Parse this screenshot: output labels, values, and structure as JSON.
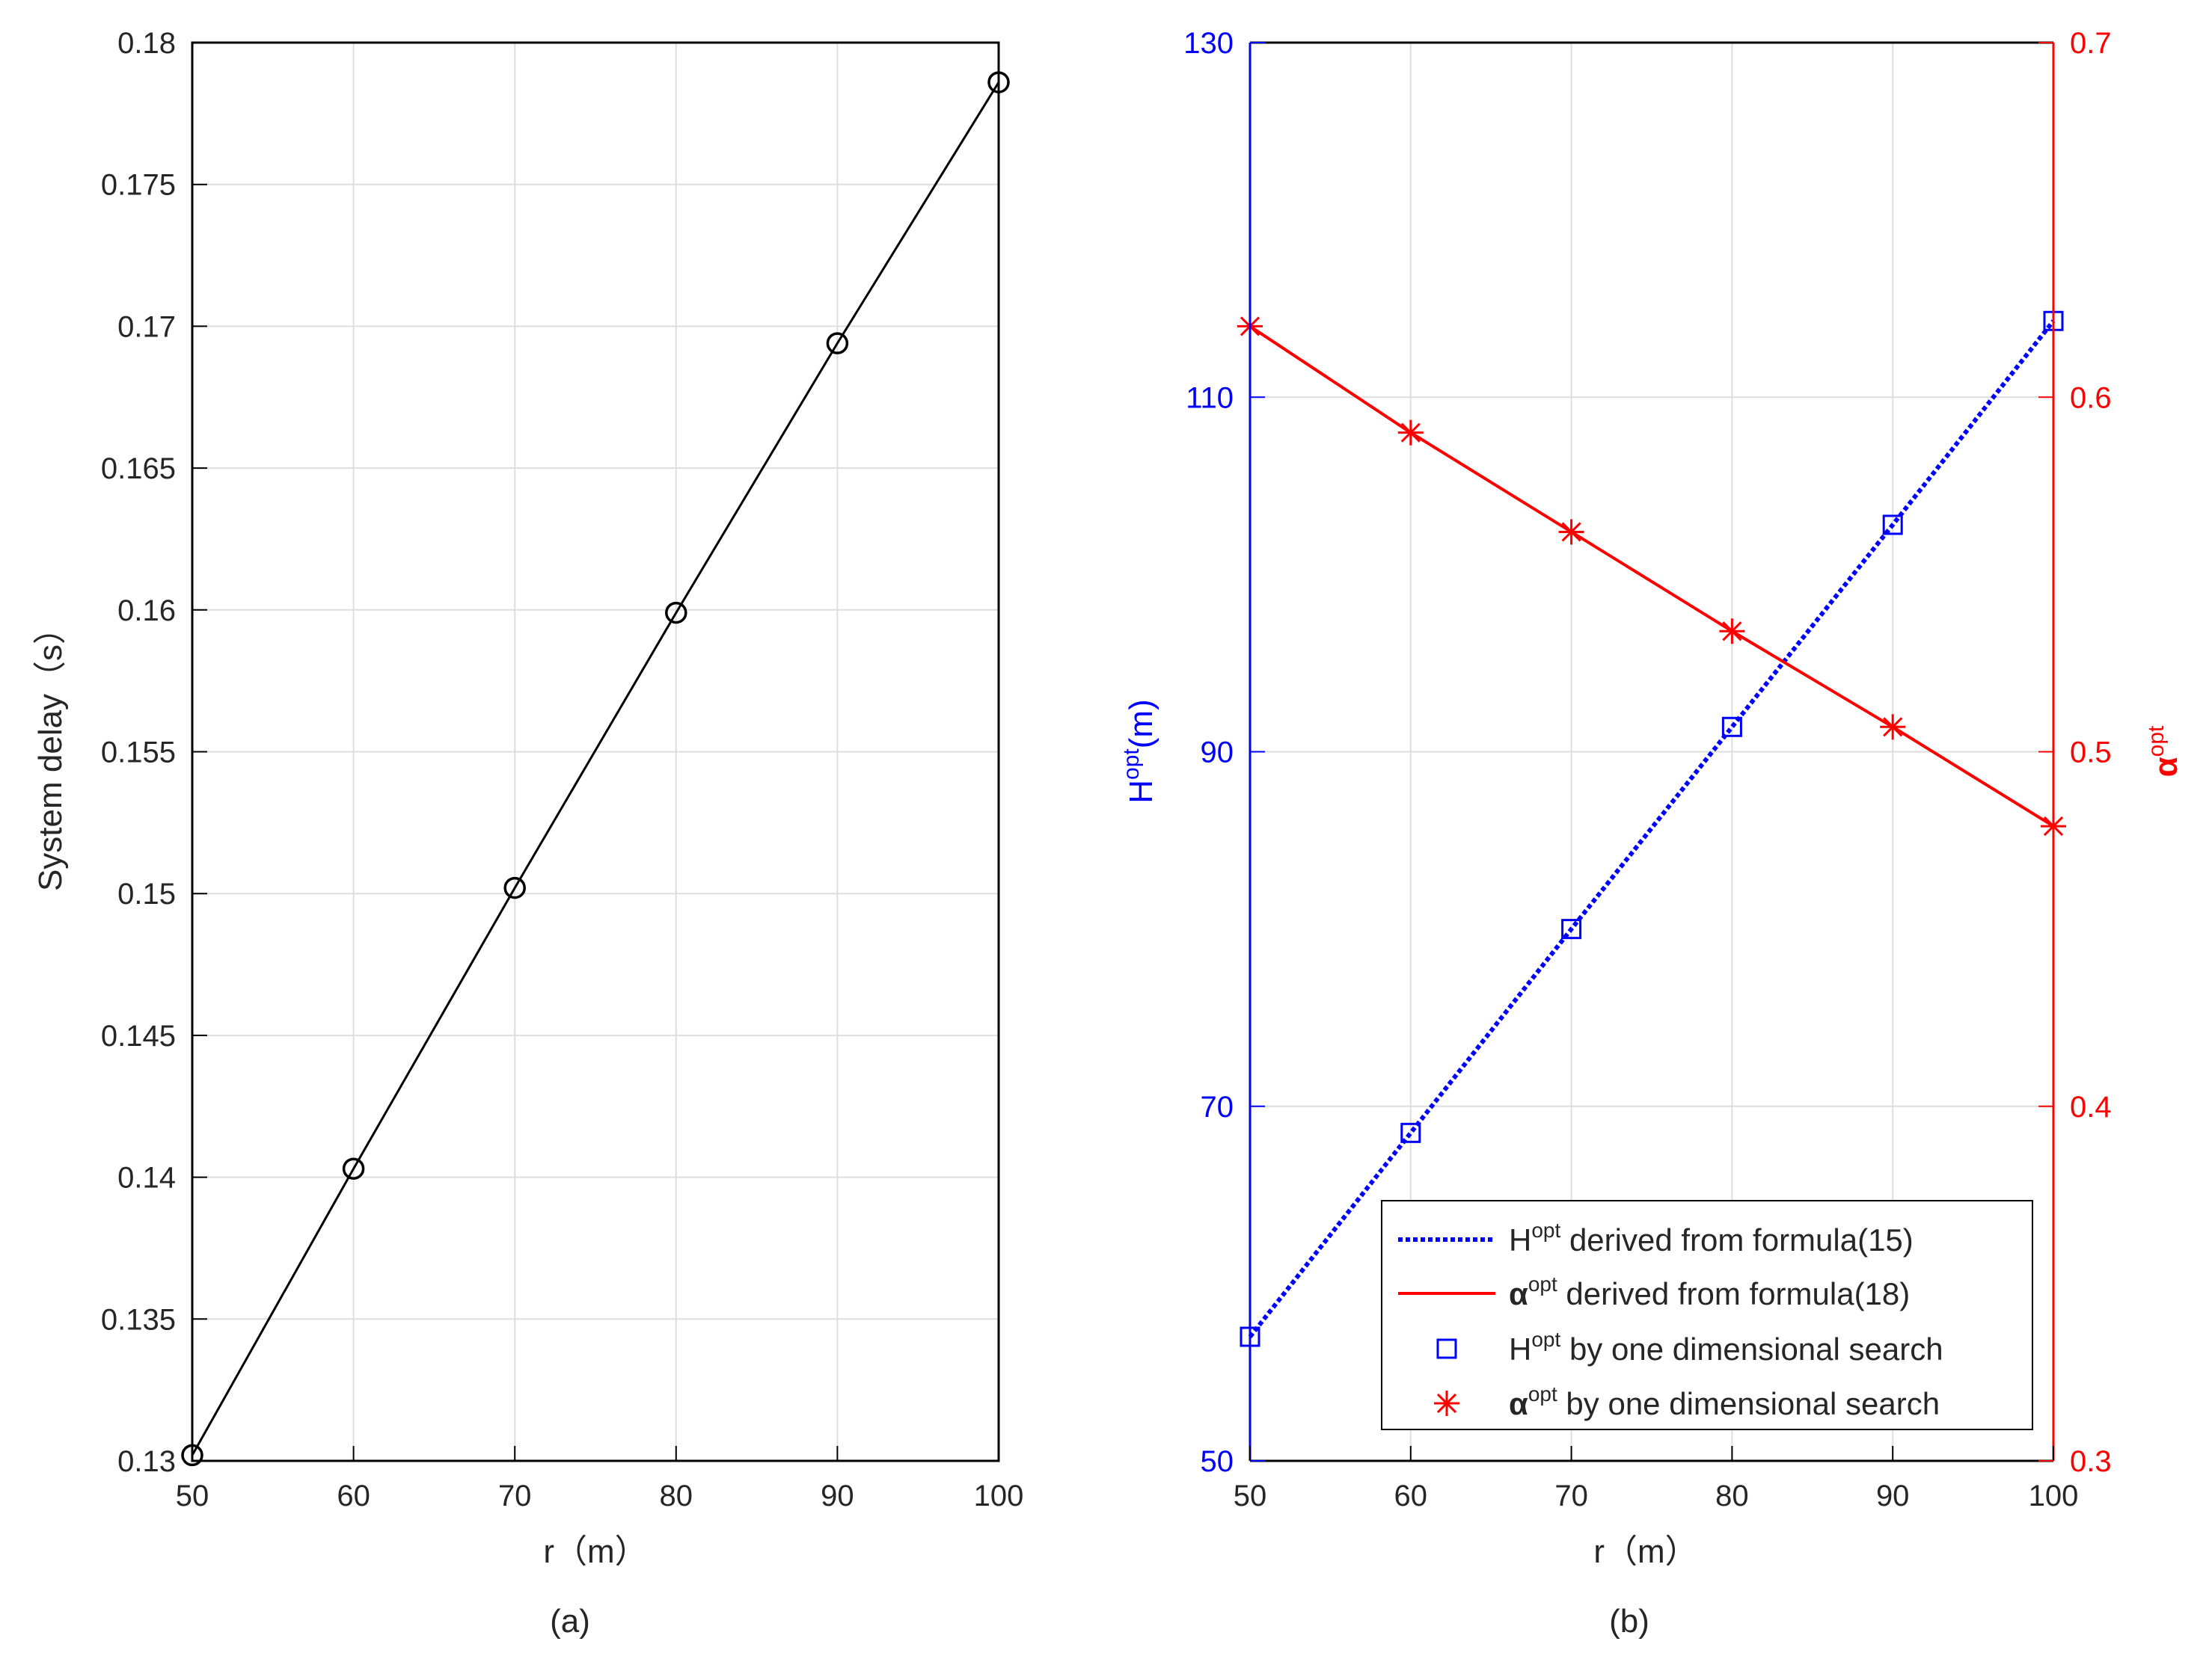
{
  "figure": {
    "background": "#ffffff"
  },
  "chart_data": [
    {
      "type": "line",
      "panel_label": "(a)",
      "xlabel": "r（m）",
      "ylabel": "System delay（s）",
      "xlim": [
        50,
        100
      ],
      "ylim": [
        0.13,
        0.18
      ],
      "xticks": [
        "50",
        "60",
        "70",
        "80",
        "90",
        "100"
      ],
      "yticks": [
        "0.13",
        "0.135",
        "0.14",
        "0.145",
        "0.15",
        "0.155",
        "0.16",
        "0.165",
        "0.17",
        "0.175",
        "0.18"
      ],
      "grid": true,
      "legend": "none",
      "series": [
        {
          "color": "#000000",
          "marker": "circle",
          "x": [
            50,
            60,
            70,
            80,
            90,
            100
          ],
          "y": [
            0.1302,
            0.1403,
            0.1502,
            0.1599,
            0.1694,
            0.1786
          ]
        }
      ]
    },
    {
      "type": "line",
      "panel_label": "(b)",
      "xlabel": "r（m）",
      "ylabel_left": {
        "base": "H",
        "sup": "opt",
        "tail": "(m)"
      },
      "ylabel_right": {
        "base": "α",
        "sup": "opt",
        "tail": ""
      },
      "xlim": [
        50,
        100
      ],
      "ylim_left": [
        50,
        130
      ],
      "ylim_right": [
        0.3,
        0.7
      ],
      "xticks": [
        "50",
        "60",
        "70",
        "80",
        "90",
        "100"
      ],
      "yticks_left": [
        "50",
        "70",
        "90",
        "110",
        "130"
      ],
      "yticks_right": [
        "0.3",
        "0.4",
        "0.5",
        "0.6",
        "0.7"
      ],
      "left_axis_color": "#0000ff",
      "right_axis_color": "#ff0000",
      "grid": true,
      "legend": "bottom-right",
      "series": [
        {
          "legend": {
            "base": "H",
            "sup": "opt",
            "tail": " derived from formula(15)"
          },
          "axis": "left",
          "style": "dotted",
          "color": "#0000ff",
          "x": [
            50,
            60,
            70,
            80,
            90,
            100
          ],
          "y": [
            57.0,
            68.5,
            80.0,
            91.4,
            102.8,
            114.3
          ]
        },
        {
          "legend": {
            "base": "α",
            "sup": "opt",
            "tail": " derived from formula(18)"
          },
          "axis": "right",
          "style": "solid",
          "color": "#ff0000",
          "x": [
            50,
            60,
            70,
            80,
            90,
            100
          ],
          "y": [
            0.62,
            0.59,
            0.562,
            0.534,
            0.507,
            0.479
          ]
        },
        {
          "legend": {
            "base": "H",
            "sup": "opt",
            "tail": " by one dimensional search"
          },
          "axis": "left",
          "style": "marker",
          "marker": "square",
          "color": "#0000ff",
          "x": [
            50,
            60,
            70,
            80,
            90,
            100
          ],
          "y": [
            57.0,
            68.5,
            80.0,
            91.4,
            102.8,
            114.3
          ]
        },
        {
          "legend": {
            "base": "α",
            "sup": "opt",
            "tail": " by one dimensional search"
          },
          "axis": "right",
          "style": "marker",
          "marker": "asterisk",
          "color": "#ff0000",
          "x": [
            50,
            60,
            70,
            80,
            90,
            100
          ],
          "y": [
            0.62,
            0.59,
            0.562,
            0.534,
            0.507,
            0.479
          ]
        }
      ]
    }
  ]
}
